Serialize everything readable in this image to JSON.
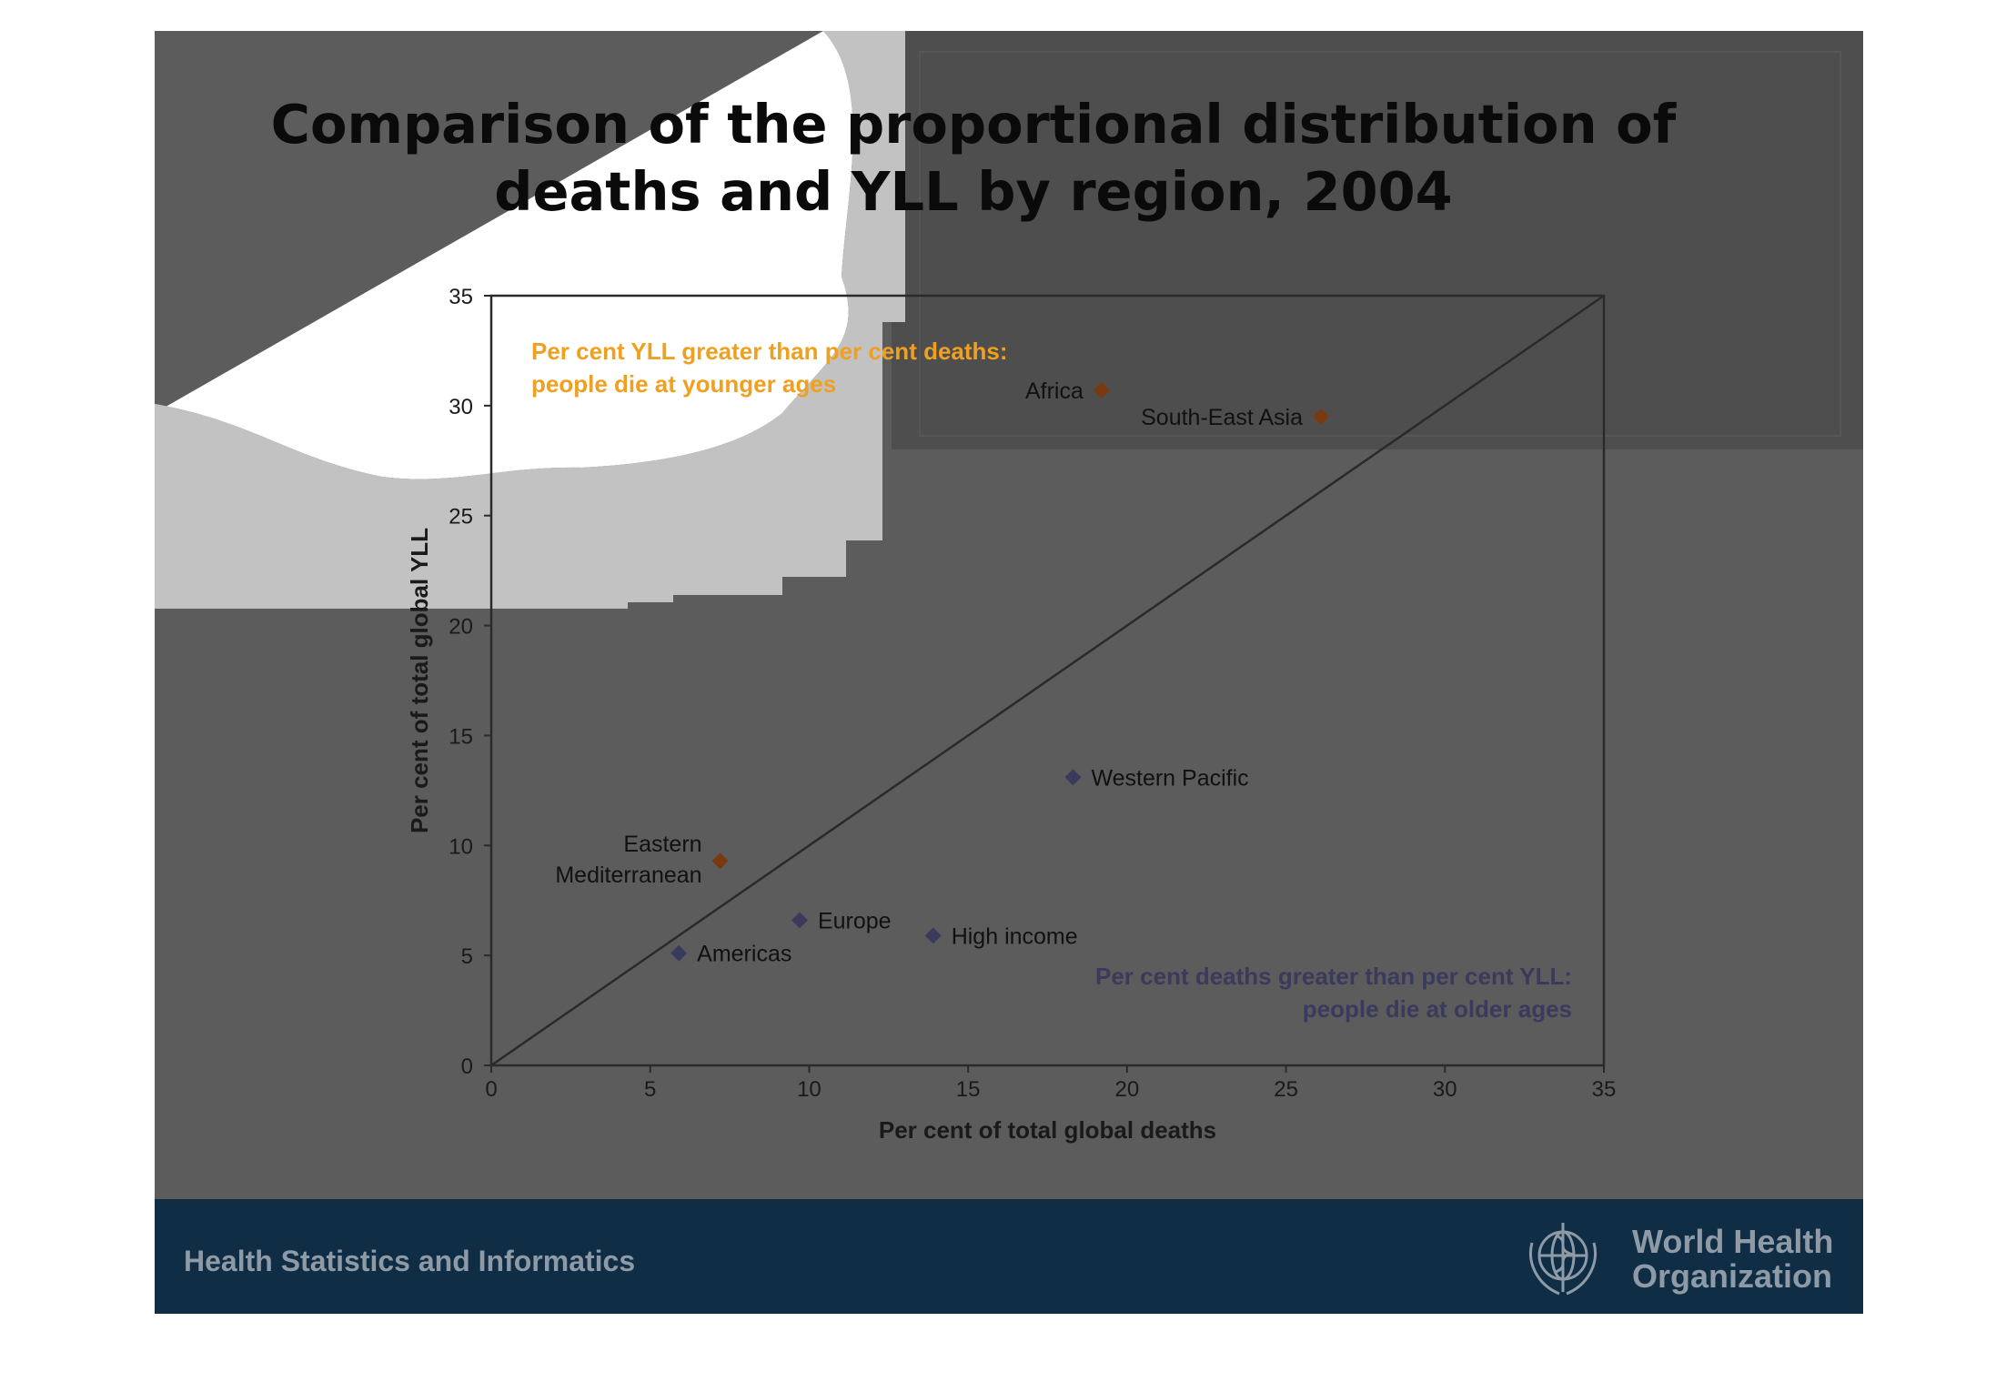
{
  "slide": {
    "title_line1": "Comparison of the proportional distribution of",
    "title_line2": "deaths and YLL by region, 2004",
    "footer_text": "Health Statistics and Informatics",
    "org_line1": "World Health",
    "org_line2": "Organization",
    "logo_icon": "who-emblem-icon"
  },
  "colors": {
    "slide_bg": "#5c5c5c",
    "footer_bg": "#0f2d44",
    "younger_marker": "#7a3a10",
    "older_marker": "#3a3a5c",
    "younger_text": "#f0a020",
    "older_text": "#3a3a5c"
  },
  "chart_data": {
    "type": "scatter",
    "xlabel": "Per cent of total global deaths",
    "ylabel": "Per cent of total global YLL",
    "xlim": [
      0,
      35
    ],
    "ylim": [
      0,
      35
    ],
    "xticks": [
      "0",
      "5",
      "10",
      "15",
      "20",
      "25",
      "30",
      "35"
    ],
    "yticks": [
      "0",
      "5",
      "10",
      "15",
      "20",
      "25",
      "30",
      "35"
    ],
    "reference_line": "y = x",
    "grid": false,
    "points": [
      {
        "label": "Africa",
        "x": 19.2,
        "y": 30.7,
        "group": "younger"
      },
      {
        "label": "South-East Asia",
        "x": 26.1,
        "y": 29.5,
        "group": "younger"
      },
      {
        "label": "Western Pacific",
        "x": 18.3,
        "y": 13.1,
        "group": "older"
      },
      {
        "label": "Eastern Mediterranean",
        "x": 7.2,
        "y": 9.3,
        "group": "younger"
      },
      {
        "label": "Europe",
        "x": 9.7,
        "y": 6.6,
        "group": "older"
      },
      {
        "label": "High income",
        "x": 13.9,
        "y": 5.9,
        "group": "older"
      },
      {
        "label": "Americas",
        "x": 5.9,
        "y": 5.1,
        "group": "older"
      }
    ],
    "annotations": [
      {
        "group": "younger",
        "line1": "Per cent YLL greater than per cent deaths:",
        "line2": "people die at younger ages"
      },
      {
        "group": "older",
        "line1": "Per cent deaths greater than per cent YLL:",
        "line2": "people die at older ages"
      }
    ]
  }
}
